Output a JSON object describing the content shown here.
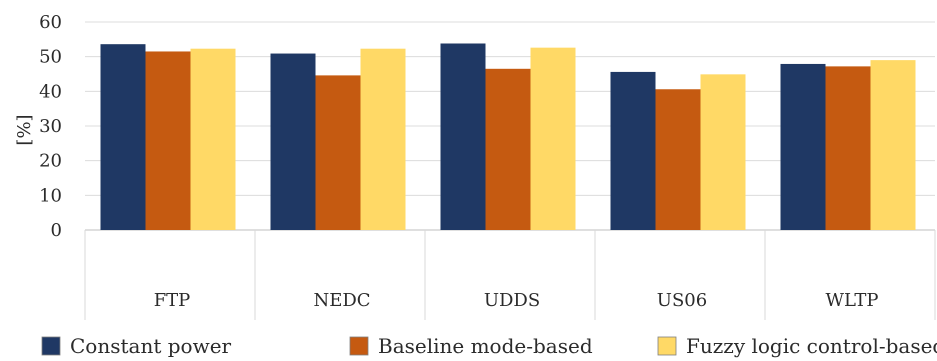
{
  "chart_data": {
    "type": "bar",
    "title": "",
    "xlabel": "",
    "ylabel": "[%]",
    "ylim": [
      0,
      60
    ],
    "yticks": [
      0,
      10,
      20,
      30,
      40,
      50,
      60
    ],
    "grid": true,
    "legend_position": "bottom",
    "categories": [
      "FTP",
      "NEDC",
      "UDDS",
      "US06",
      "WLTP"
    ],
    "series": [
      {
        "name": "Constant power",
        "color": "#1f3864",
        "values": [
          53.6,
          50.9,
          53.8,
          45.6,
          47.9
        ]
      },
      {
        "name": "Baseline mode-based",
        "color": "#c55a11",
        "values": [
          51.5,
          44.6,
          46.5,
          40.6,
          47.2
        ]
      },
      {
        "name": "Fuzzy logic control-based",
        "color": "#ffd966",
        "values": [
          52.3,
          52.3,
          52.6,
          44.9,
          49.0
        ]
      }
    ]
  }
}
